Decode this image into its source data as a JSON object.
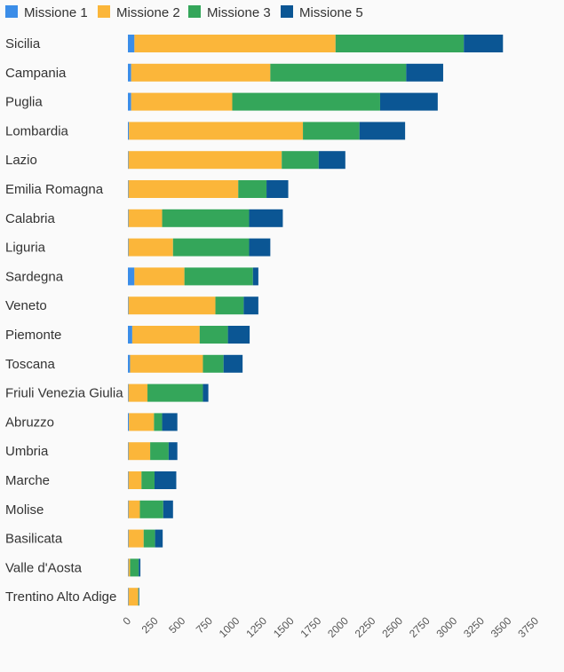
{
  "chart_data": {
    "type": "bar",
    "orientation": "horizontal",
    "stacked": true,
    "legend_position": "top-left",
    "grid": false,
    "xlim": [
      0,
      3750
    ],
    "x_ticks": [
      "0",
      "250",
      "500",
      "750",
      "1000",
      "1250",
      "1500",
      "1750",
      "2000",
      "2250",
      "2500",
      "2750",
      "3000",
      "3250",
      "3500",
      "3750"
    ],
    "categories": [
      "Sicilia",
      "Campania",
      "Puglia",
      "Lombardia",
      "Lazio",
      "Emilia Romagna",
      "Calabria",
      "Liguria",
      "Sardegna",
      "Veneto",
      "Piemonte",
      "Toscana",
      "Friuli Venezia Giulia",
      "Abruzzo",
      "Umbria",
      "Marche",
      "Molise",
      "Basilicata",
      "Valle d'Aosta",
      "Trentino Alto Adige"
    ],
    "series": [
      {
        "name": "Missione 1",
        "color": "#3b8de8",
        "values": [
          60,
          30,
          30,
          10,
          5,
          5,
          5,
          5,
          60,
          5,
          40,
          20,
          5,
          10,
          5,
          5,
          5,
          5,
          5,
          5
        ]
      },
      {
        "name": "Missione 2",
        "color": "#fbb63a",
        "values": [
          1850,
          1280,
          930,
          1600,
          1410,
          1010,
          310,
          410,
          460,
          800,
          620,
          670,
          175,
          230,
          200,
          120,
          105,
          140,
          15,
          90
        ]
      },
      {
        "name": "Missione 3",
        "color": "#34a65a",
        "values": [
          1180,
          1250,
          1360,
          520,
          340,
          260,
          800,
          700,
          630,
          260,
          260,
          190,
          510,
          75,
          170,
          120,
          215,
          105,
          80,
          5
        ]
      },
      {
        "name": "Missione 5",
        "color": "#0b5694",
        "values": [
          360,
          340,
          530,
          420,
          245,
          200,
          310,
          195,
          50,
          135,
          200,
          175,
          50,
          140,
          80,
          200,
          90,
          70,
          15,
          5
        ]
      }
    ]
  }
}
